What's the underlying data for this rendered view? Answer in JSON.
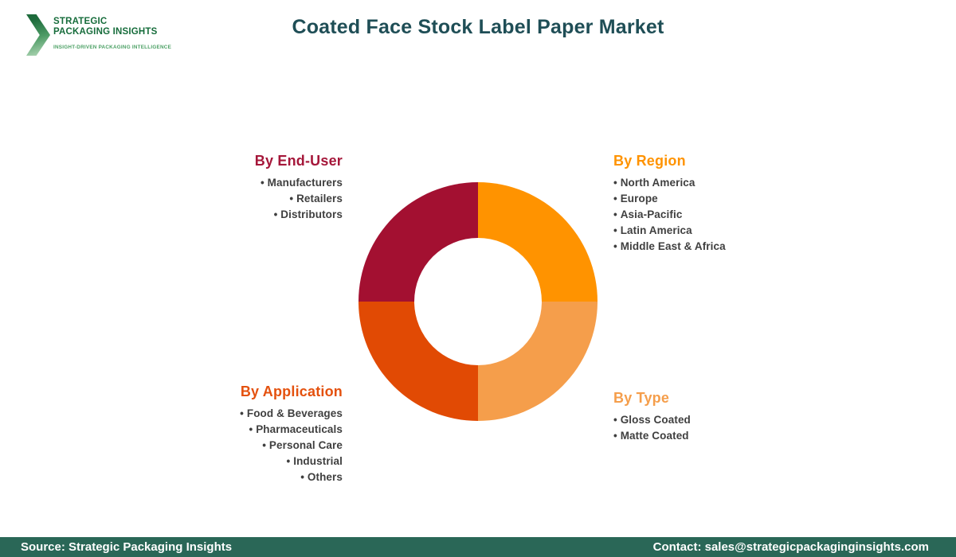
{
  "brand": {
    "name_line1": "STRATEGIC",
    "name_line2": "PACKAGING INSIGHTS",
    "tagline": "INSIGHT-DRIVEN PACKAGING INTELLIGENCE",
    "name_color": "#166C3B",
    "tagline_color": "#4BA064"
  },
  "header": {
    "title": "Coated Face Stock Label Paper Market",
    "title_color": "#1F4E56"
  },
  "chart_data": {
    "type": "pie",
    "subtype": "donut",
    "direction": "clockwise",
    "start_angle_deg": 0,
    "inner_radius_ratio": 0.53,
    "segments": [
      {
        "label": "By Region",
        "value": 25,
        "color": "#FF9300"
      },
      {
        "label": "By Type",
        "value": 25,
        "color": "#F59E4B"
      },
      {
        "label": "By Application",
        "value": 25,
        "color": "#E14A04"
      },
      {
        "label": "By End-User",
        "value": 25,
        "color": "#A31031"
      }
    ]
  },
  "sections": {
    "end_user": {
      "title": "By End-User",
      "color": "#A5173A",
      "items": [
        "Manufacturers",
        "Retailers",
        "Distributors"
      ]
    },
    "region": {
      "title": "By Region",
      "color": "#FF9300",
      "items": [
        "North America",
        "Europe",
        "Asia-Pacific",
        "Latin America",
        "Middle East & Africa"
      ]
    },
    "application": {
      "title": "By Application",
      "color": "#E4510E",
      "items": [
        "Food & Beverages",
        "Pharmaceuticals",
        "Personal Care",
        "Industrial",
        "Others"
      ]
    },
    "type": {
      "title": "By Type",
      "color": "#F59E4B",
      "items": [
        "Gloss Coated",
        "Matte Coated"
      ]
    }
  },
  "footer": {
    "bar_color": "#2A6757",
    "source": "Source: Strategic Packaging Insights",
    "contact": "Contact: sales@strategicpackaginginsights.com"
  }
}
